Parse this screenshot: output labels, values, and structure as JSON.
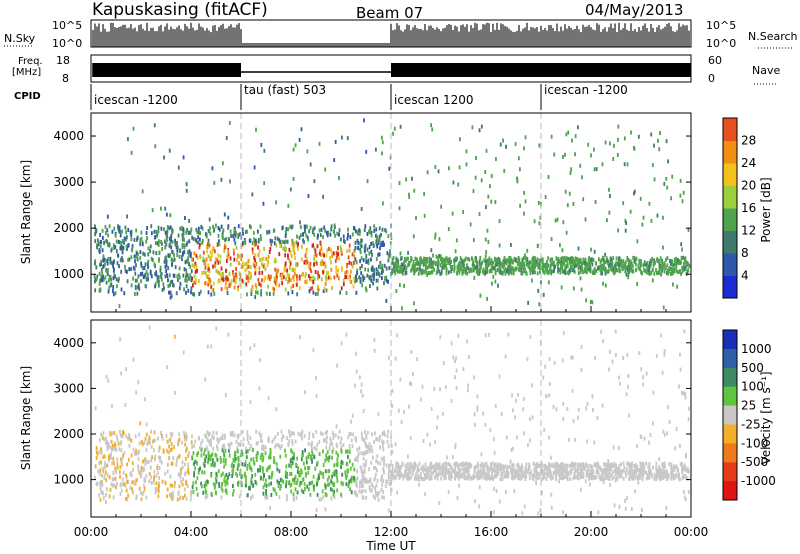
{
  "header": {
    "station": "Kapuskasing (fitACF)",
    "beam": "Beam 07",
    "date": "04/May/2013"
  },
  "top_panels": {
    "nsky_label": "N.Sky",
    "nsearch_label": "N.Search",
    "freq_label_line1": "Freq.",
    "freq_label_line2": "[MHz]",
    "nave_label": "Nave",
    "cpid_label": "CPID",
    "nsky_ticks": [
      "10^5",
      "10^0"
    ],
    "nsearch_ticks": [
      "10^5",
      "10^0"
    ],
    "freq_ticks": [
      "18",
      "8"
    ],
    "nave_ticks": [
      "60",
      "0"
    ],
    "cpid_segments": [
      {
        "label": "icescan -1200",
        "start_h": 0,
        "end_h": 6
      },
      {
        "label": "tau (fast) 503",
        "start_h": 6,
        "end_h": 12
      },
      {
        "label": "icescan 1200",
        "start_h": 12,
        "end_h": 18
      },
      {
        "label": "icescan -1200",
        "start_h": 18,
        "end_h": 24
      }
    ]
  },
  "chart_data": [
    {
      "type": "heatmap",
      "name": "power",
      "ylabel": "Slant Range [km]",
      "xlabel": "",
      "xlim": [
        0,
        24
      ],
      "ylim": [
        180,
        4500
      ],
      "yticks": [
        1000,
        2000,
        3000,
        4000
      ],
      "colorbar_label": "Power [dB]",
      "colorbar_ticks": [
        "4",
        "8",
        "12",
        "16",
        "20",
        "24",
        "28"
      ],
      "colorbar_colors": [
        "#1b2bd6",
        "#2f58a8",
        "#3f7a6f",
        "#4fa34c",
        "#9ccf3a",
        "#f2c11a",
        "#f08f14",
        "#e8511f",
        "#d42020"
      ],
      "data_regions": [
        {
          "t0": 0.1,
          "t1": 12.0,
          "r0": 900,
          "r1": 2100,
          "value": 8
        },
        {
          "t0": 4.0,
          "t1": 10.5,
          "r0": 700,
          "r1": 1600,
          "value": 24
        },
        {
          "t0": 12.0,
          "t1": 24.0,
          "r0": 1000,
          "r1": 1400,
          "value": 10
        }
      ]
    },
    {
      "type": "heatmap",
      "name": "velocity",
      "ylabel": "Slant Range [km]",
      "xlabel": "Time UT",
      "xlim": [
        0,
        24
      ],
      "ylim": [
        180,
        4500
      ],
      "yticks": [
        1000,
        2000,
        3000,
        4000
      ],
      "xticks": [
        "00:00",
        "04:00",
        "08:00",
        "12:00",
        "16:00",
        "20:00",
        "00:00"
      ],
      "colorbar_label": "Velocity [m s⁻¹]",
      "colorbar_ticks": [
        "1000",
        "500",
        "100",
        "25",
        "-25",
        "-100",
        "-500",
        "-1000"
      ],
      "colorbar_colors": [
        "#1a2fb8",
        "#2f5fa6",
        "#3e8a62",
        "#5fc53e",
        "#c8c8c8",
        "#f2b02a",
        "#f07a1a",
        "#e63c1a",
        "#e01414"
      ],
      "data_regions": [
        {
          "t0": 0.1,
          "t1": 12.0,
          "r0": 900,
          "r1": 2100,
          "value": 25
        },
        {
          "t0": 4.0,
          "t1": 10.5,
          "r0": 800,
          "r1": 1700,
          "value": 100
        },
        {
          "t0": 12.0,
          "t1": 24.0,
          "r0": 1000,
          "r1": 1400,
          "value": 0
        }
      ]
    }
  ]
}
